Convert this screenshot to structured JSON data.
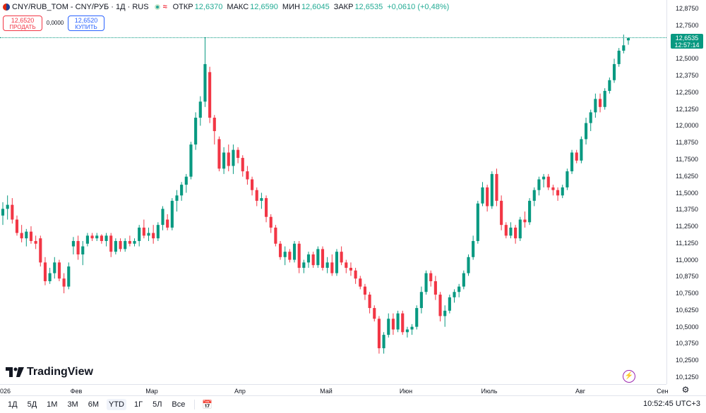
{
  "header": {
    "symbol_title": "CNY/RUB_TOM - CNY/РУБ · 1Д · RUS",
    "ohlc": [
      {
        "label": "ОТКР",
        "value": "12,6370"
      },
      {
        "label": "МАКС",
        "value": "12,6590"
      },
      {
        "label": "МИН",
        "value": "12,6045"
      },
      {
        "label": "ЗАКР",
        "value": "12,6535"
      },
      {
        "label": "",
        "value": "+0,0610 (+0,48%)"
      }
    ]
  },
  "trade": {
    "sell_price": "12,6520",
    "sell_label": "ПРОДАТЬ",
    "spread": "0,0000",
    "buy_price": "12,6520",
    "buy_label": "КУПИТЬ"
  },
  "price_axis": {
    "labels": [
      "12,8750",
      "12,7500",
      "12,6250",
      "12,5000",
      "12,3750",
      "12,2500",
      "12,1250",
      "12,0000",
      "11,8750",
      "11,7500",
      "11,6250",
      "11,5000",
      "11,3750",
      "11,2500",
      "11,1250",
      "11,0000",
      "10,8750",
      "10,7500",
      "10,6250",
      "10,5000",
      "10,3750",
      "10,2500",
      "10,1250"
    ],
    "last_price": "12,6535",
    "countdown": "12:57:14"
  },
  "time_axis": {
    "labels": [
      "026",
      "Фев",
      "Мар",
      "Апр",
      "Май",
      "Июн",
      "Июль",
      "Авг",
      "Сен"
    ]
  },
  "branding": {
    "logo_text": "TradingView"
  },
  "bottom_toolbar": {
    "ranges": [
      "1Д",
      "5Д",
      "1М",
      "3М",
      "6М",
      "YTD",
      "1Г",
      "5Л",
      "Все"
    ],
    "active_range": "YTD",
    "clock": "10:52:45 UTC+3"
  },
  "colors": {
    "up": "#089981",
    "down": "#f23645",
    "accent": "#2962ff"
  },
  "chart_data": {
    "type": "candlestick",
    "ylim": [
      10.1,
      12.9
    ],
    "candles": [
      {
        "o": 11.33,
        "h": 11.43,
        "l": 11.26,
        "c": 11.38
      },
      {
        "o": 11.38,
        "h": 11.48,
        "l": 11.3,
        "c": 11.41
      },
      {
        "o": 11.41,
        "h": 11.46,
        "l": 11.27,
        "c": 11.3
      },
      {
        "o": 11.3,
        "h": 11.33,
        "l": 11.18,
        "c": 11.2
      },
      {
        "o": 11.2,
        "h": 11.26,
        "l": 11.13,
        "c": 11.16
      },
      {
        "o": 11.16,
        "h": 11.23,
        "l": 11.1,
        "c": 11.21
      },
      {
        "o": 11.21,
        "h": 11.25,
        "l": 11.12,
        "c": 11.14
      },
      {
        "o": 11.14,
        "h": 11.18,
        "l": 11.08,
        "c": 11.12
      },
      {
        "o": 11.16,
        "h": 11.18,
        "l": 10.95,
        "c": 10.98
      },
      {
        "o": 10.98,
        "h": 11.02,
        "l": 10.81,
        "c": 10.84
      },
      {
        "o": 10.84,
        "h": 10.94,
        "l": 10.82,
        "c": 10.9
      },
      {
        "o": 10.9,
        "h": 11.02,
        "l": 10.86,
        "c": 10.98
      },
      {
        "o": 10.98,
        "h": 11.0,
        "l": 10.84,
        "c": 10.86
      },
      {
        "o": 10.86,
        "h": 10.9,
        "l": 10.75,
        "c": 10.8
      },
      {
        "o": 10.8,
        "h": 10.98,
        "l": 10.78,
        "c": 10.95
      },
      {
        "o": 11.1,
        "h": 11.17,
        "l": 11.04,
        "c": 11.14
      },
      {
        "o": 11.14,
        "h": 11.18,
        "l": 11.0,
        "c": 11.04
      },
      {
        "o": 11.04,
        "h": 11.14,
        "l": 10.96,
        "c": 11.1
      },
      {
        "o": 11.12,
        "h": 11.2,
        "l": 11.1,
        "c": 11.18
      },
      {
        "o": 11.18,
        "h": 11.2,
        "l": 11.14,
        "c": 11.16
      },
      {
        "o": 11.16,
        "h": 11.2,
        "l": 11.14,
        "c": 11.18
      },
      {
        "o": 11.18,
        "h": 11.19,
        "l": 11.12,
        "c": 11.14
      },
      {
        "o": 11.14,
        "h": 11.2,
        "l": 11.1,
        "c": 11.18
      },
      {
        "o": 11.18,
        "h": 11.2,
        "l": 11.02,
        "c": 11.06
      },
      {
        "o": 11.06,
        "h": 11.16,
        "l": 11.04,
        "c": 11.14
      },
      {
        "o": 11.14,
        "h": 11.16,
        "l": 11.06,
        "c": 11.08
      },
      {
        "o": 11.08,
        "h": 11.16,
        "l": 11.06,
        "c": 11.14
      },
      {
        "o": 11.14,
        "h": 11.18,
        "l": 11.1,
        "c": 11.12
      },
      {
        "o": 11.12,
        "h": 11.16,
        "l": 11.1,
        "c": 11.14
      },
      {
        "o": 11.14,
        "h": 11.26,
        "l": 11.1,
        "c": 11.24
      },
      {
        "o": 11.24,
        "h": 11.3,
        "l": 11.16,
        "c": 11.18
      },
      {
        "o": 11.18,
        "h": 11.24,
        "l": 11.14,
        "c": 11.2
      },
      {
        "o": 11.2,
        "h": 11.26,
        "l": 11.12,
        "c": 11.16
      },
      {
        "o": 11.16,
        "h": 11.28,
        "l": 11.14,
        "c": 11.26
      },
      {
        "o": 11.26,
        "h": 11.4,
        "l": 11.22,
        "c": 11.38
      },
      {
        "o": 11.3,
        "h": 11.34,
        "l": 11.22,
        "c": 11.24
      },
      {
        "o": 11.24,
        "h": 11.46,
        "l": 11.22,
        "c": 11.44
      },
      {
        "o": 11.44,
        "h": 11.52,
        "l": 11.36,
        "c": 11.48
      },
      {
        "o": 11.48,
        "h": 11.58,
        "l": 11.44,
        "c": 11.56
      },
      {
        "o": 11.56,
        "h": 11.64,
        "l": 11.5,
        "c": 11.62
      },
      {
        "o": 11.62,
        "h": 11.88,
        "l": 11.6,
        "c": 11.86
      },
      {
        "o": 11.86,
        "h": 12.1,
        "l": 11.82,
        "c": 12.06
      },
      {
        "o": 12.06,
        "h": 12.22,
        "l": 12.0,
        "c": 12.18
      },
      {
        "o": 12.18,
        "h": 12.66,
        "l": 12.14,
        "c": 12.46
      },
      {
        "o": 12.4,
        "h": 12.44,
        "l": 12.02,
        "c": 12.06
      },
      {
        "o": 12.06,
        "h": 12.08,
        "l": 11.86,
        "c": 11.96
      },
      {
        "o": 11.9,
        "h": 11.92,
        "l": 11.66,
        "c": 11.68
      },
      {
        "o": 11.68,
        "h": 11.84,
        "l": 11.64,
        "c": 11.8
      },
      {
        "o": 11.8,
        "h": 11.86,
        "l": 11.66,
        "c": 11.7
      },
      {
        "o": 11.7,
        "h": 11.86,
        "l": 11.64,
        "c": 11.82
      },
      {
        "o": 11.82,
        "h": 11.84,
        "l": 11.72,
        "c": 11.76
      },
      {
        "o": 11.76,
        "h": 11.78,
        "l": 11.62,
        "c": 11.66
      },
      {
        "o": 11.66,
        "h": 11.7,
        "l": 11.56,
        "c": 11.6
      },
      {
        "o": 11.6,
        "h": 11.62,
        "l": 11.48,
        "c": 11.52
      },
      {
        "o": 11.52,
        "h": 11.54,
        "l": 11.4,
        "c": 11.44
      },
      {
        "o": 11.44,
        "h": 11.5,
        "l": 11.38,
        "c": 11.46
      },
      {
        "o": 11.46,
        "h": 11.48,
        "l": 11.28,
        "c": 11.32
      },
      {
        "o": 11.32,
        "h": 11.34,
        "l": 11.2,
        "c": 11.24
      },
      {
        "o": 11.24,
        "h": 11.26,
        "l": 11.1,
        "c": 11.12
      },
      {
        "o": 11.12,
        "h": 11.14,
        "l": 11.0,
        "c": 11.02
      },
      {
        "o": 11.02,
        "h": 11.1,
        "l": 10.96,
        "c": 11.06
      },
      {
        "o": 11.06,
        "h": 11.08,
        "l": 10.98,
        "c": 11.0
      },
      {
        "o": 11.0,
        "h": 11.14,
        "l": 10.98,
        "c": 11.12
      },
      {
        "o": 11.12,
        "h": 11.14,
        "l": 10.9,
        "c": 10.94
      },
      {
        "o": 10.94,
        "h": 11.0,
        "l": 10.9,
        "c": 10.98
      },
      {
        "o": 10.98,
        "h": 11.06,
        "l": 10.94,
        "c": 11.04
      },
      {
        "o": 11.04,
        "h": 11.06,
        "l": 10.94,
        "c": 10.96
      },
      {
        "o": 10.96,
        "h": 11.1,
        "l": 10.94,
        "c": 11.08
      },
      {
        "o": 11.08,
        "h": 11.1,
        "l": 10.92,
        "c": 10.94
      },
      {
        "o": 10.94,
        "h": 11.02,
        "l": 10.9,
        "c": 10.98
      },
      {
        "o": 10.98,
        "h": 11.04,
        "l": 10.88,
        "c": 10.9
      },
      {
        "o": 10.9,
        "h": 11.08,
        "l": 10.88,
        "c": 11.06
      },
      {
        "o": 11.06,
        "h": 11.1,
        "l": 10.96,
        "c": 10.98
      },
      {
        "o": 10.98,
        "h": 11.0,
        "l": 10.9,
        "c": 10.94
      },
      {
        "o": 10.94,
        "h": 10.98,
        "l": 10.88,
        "c": 10.92
      },
      {
        "o": 10.92,
        "h": 10.94,
        "l": 10.82,
        "c": 10.86
      },
      {
        "o": 10.86,
        "h": 10.88,
        "l": 10.78,
        "c": 10.8
      },
      {
        "o": 10.8,
        "h": 10.82,
        "l": 10.7,
        "c": 10.74
      },
      {
        "o": 10.74,
        "h": 10.76,
        "l": 10.6,
        "c": 10.64
      },
      {
        "o": 10.64,
        "h": 10.66,
        "l": 10.54,
        "c": 10.56
      },
      {
        "o": 10.56,
        "h": 10.58,
        "l": 10.3,
        "c": 10.34
      },
      {
        "o": 10.34,
        "h": 10.46,
        "l": 10.3,
        "c": 10.44
      },
      {
        "o": 10.44,
        "h": 10.6,
        "l": 10.42,
        "c": 10.56
      },
      {
        "o": 10.56,
        "h": 10.6,
        "l": 10.44,
        "c": 10.48
      },
      {
        "o": 10.48,
        "h": 10.62,
        "l": 10.46,
        "c": 10.6
      },
      {
        "o": 10.6,
        "h": 10.62,
        "l": 10.44,
        "c": 10.46
      },
      {
        "o": 10.46,
        "h": 10.5,
        "l": 10.42,
        "c": 10.48
      },
      {
        "o": 10.48,
        "h": 10.52,
        "l": 10.44,
        "c": 10.5
      },
      {
        "o": 10.5,
        "h": 10.66,
        "l": 10.48,
        "c": 10.64
      },
      {
        "o": 10.64,
        "h": 10.8,
        "l": 10.6,
        "c": 10.76
      },
      {
        "o": 10.76,
        "h": 10.92,
        "l": 10.74,
        "c": 10.9
      },
      {
        "o": 10.9,
        "h": 10.92,
        "l": 10.8,
        "c": 10.84
      },
      {
        "o": 10.84,
        "h": 10.88,
        "l": 10.7,
        "c": 10.74
      },
      {
        "o": 10.74,
        "h": 10.76,
        "l": 10.54,
        "c": 10.58
      },
      {
        "o": 10.58,
        "h": 10.66,
        "l": 10.5,
        "c": 10.62
      },
      {
        "o": 10.62,
        "h": 10.74,
        "l": 10.6,
        "c": 10.72
      },
      {
        "o": 10.72,
        "h": 10.78,
        "l": 10.68,
        "c": 10.76
      },
      {
        "o": 10.76,
        "h": 10.82,
        "l": 10.72,
        "c": 10.8
      },
      {
        "o": 10.8,
        "h": 10.92,
        "l": 10.78,
        "c": 10.9
      },
      {
        "o": 10.9,
        "h": 11.04,
        "l": 10.88,
        "c": 11.02
      },
      {
        "o": 11.02,
        "h": 11.18,
        "l": 11.0,
        "c": 11.14
      },
      {
        "o": 11.14,
        "h": 11.44,
        "l": 11.12,
        "c": 11.42
      },
      {
        "o": 11.42,
        "h": 11.58,
        "l": 11.4,
        "c": 11.54
      },
      {
        "o": 11.54,
        "h": 11.56,
        "l": 11.36,
        "c": 11.4
      },
      {
        "o": 11.4,
        "h": 11.66,
        "l": 11.38,
        "c": 11.64
      },
      {
        "o": 11.64,
        "h": 11.68,
        "l": 11.4,
        "c": 11.44
      },
      {
        "o": 11.44,
        "h": 11.48,
        "l": 11.22,
        "c": 11.26
      },
      {
        "o": 11.26,
        "h": 11.28,
        "l": 11.16,
        "c": 11.18
      },
      {
        "o": 11.18,
        "h": 11.28,
        "l": 11.16,
        "c": 11.24
      },
      {
        "o": 11.24,
        "h": 11.26,
        "l": 11.12,
        "c": 11.16
      },
      {
        "o": 11.16,
        "h": 11.32,
        "l": 11.14,
        "c": 11.3
      },
      {
        "o": 11.3,
        "h": 11.36,
        "l": 11.24,
        "c": 11.28
      },
      {
        "o": 11.28,
        "h": 11.46,
        "l": 11.26,
        "c": 11.44
      },
      {
        "o": 11.44,
        "h": 11.54,
        "l": 11.4,
        "c": 11.52
      },
      {
        "o": 11.52,
        "h": 11.62,
        "l": 11.48,
        "c": 11.6
      },
      {
        "o": 11.6,
        "h": 11.64,
        "l": 11.54,
        "c": 11.62
      },
      {
        "o": 11.62,
        "h": 11.64,
        "l": 11.52,
        "c": 11.54
      },
      {
        "o": 11.54,
        "h": 11.56,
        "l": 11.48,
        "c": 11.52
      },
      {
        "o": 11.52,
        "h": 11.54,
        "l": 11.44,
        "c": 11.48
      },
      {
        "o": 11.48,
        "h": 11.56,
        "l": 11.46,
        "c": 11.54
      },
      {
        "o": 11.54,
        "h": 11.68,
        "l": 11.52,
        "c": 11.66
      },
      {
        "o": 11.66,
        "h": 11.82,
        "l": 11.64,
        "c": 11.8
      },
      {
        "o": 11.8,
        "h": 11.82,
        "l": 11.72,
        "c": 11.74
      },
      {
        "o": 11.74,
        "h": 11.92,
        "l": 11.72,
        "c": 11.9
      },
      {
        "o": 11.9,
        "h": 12.06,
        "l": 11.86,
        "c": 12.02
      },
      {
        "o": 12.02,
        "h": 12.12,
        "l": 11.96,
        "c": 12.1
      },
      {
        "o": 12.1,
        "h": 12.24,
        "l": 12.06,
        "c": 12.2
      },
      {
        "o": 12.2,
        "h": 12.24,
        "l": 12.1,
        "c": 12.14
      },
      {
        "o": 12.14,
        "h": 12.28,
        "l": 12.12,
        "c": 12.26
      },
      {
        "o": 12.26,
        "h": 12.36,
        "l": 12.24,
        "c": 12.34
      },
      {
        "o": 12.34,
        "h": 12.5,
        "l": 12.32,
        "c": 12.46
      },
      {
        "o": 12.46,
        "h": 12.58,
        "l": 12.44,
        "c": 12.56
      },
      {
        "o": 12.56,
        "h": 12.68,
        "l": 12.54,
        "c": 12.6
      },
      {
        "o": 12.637,
        "h": 12.659,
        "l": 12.6045,
        "c": 12.6535
      }
    ]
  }
}
